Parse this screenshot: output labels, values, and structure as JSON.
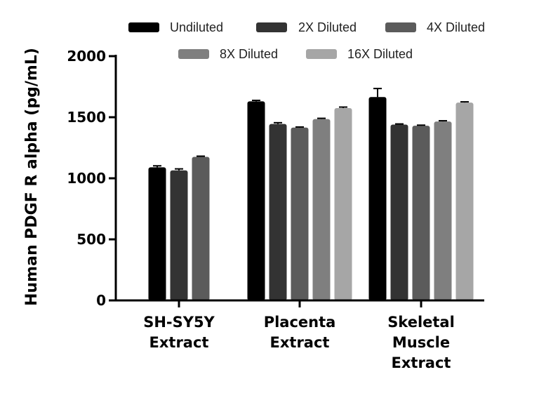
{
  "chart_data": {
    "type": "bar",
    "ylabel": "Human PDGF R alpha (pg/mL)",
    "ylim": [
      0,
      2000
    ],
    "yticks": [
      0,
      500,
      1000,
      1500,
      2000
    ],
    "categories": [
      [
        "SH-SY5Y",
        "Extract"
      ],
      [
        "Placenta",
        "Extract"
      ],
      [
        "Skeletal",
        "Muscle",
        "Extract"
      ]
    ],
    "legend_position": "top",
    "series": [
      {
        "name": "Undiluted",
        "color": "#000000",
        "values": [
          1090,
          1630,
          1665
        ],
        "errors": [
          12,
          8,
          70
        ]
      },
      {
        "name": "2X Diluted",
        "color": "#333333",
        "values": [
          1065,
          1445,
          1440
        ],
        "errors": [
          12,
          10,
          5
        ]
      },
      {
        "name": "4X Diluted",
        "color": "#5b5b5b",
        "values": [
          1175,
          1415,
          1430
        ],
        "errors": [
          6,
          5,
          5
        ]
      },
      {
        "name": "8X Diluted",
        "color": "#7f7f7f",
        "values": [
          null,
          1485,
          1465
        ],
        "errors": [
          null,
          6,
          6
        ]
      },
      {
        "name": "16X Diluted",
        "color": "#a6a6a6",
        "values": [
          null,
          1575,
          1620
        ],
        "errors": [
          null,
          8,
          6
        ]
      }
    ]
  }
}
